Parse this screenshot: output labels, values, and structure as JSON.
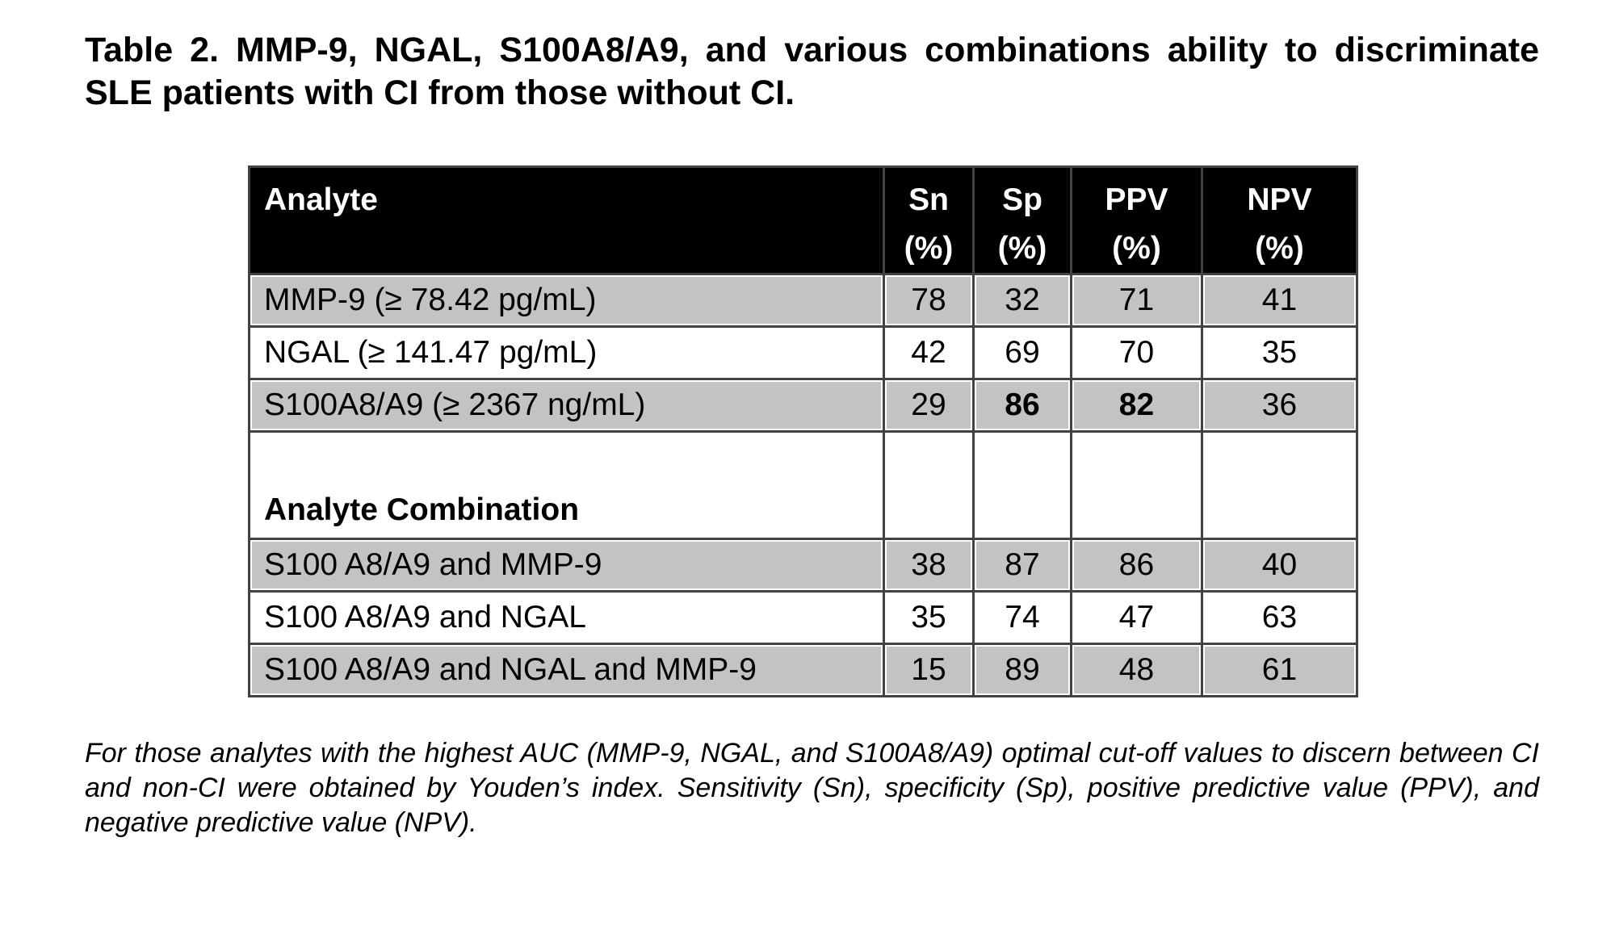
{
  "title": "Table 2. MMP-9, NGAL, S100A8/A9, and various combinations ability to discriminate SLE patients with CI from those without CI.",
  "table": {
    "columns": {
      "analyte": {
        "label": "Analyte",
        "unit": ""
      },
      "sn": {
        "label": "Sn",
        "unit": "(%)"
      },
      "sp": {
        "label": "Sp",
        "unit": "(%)"
      },
      "ppv": {
        "label": "PPV",
        "unit": "(%)"
      },
      "npv": {
        "label": "NPV",
        "unit": "(%)"
      }
    },
    "rows": [
      {
        "analyte": "MMP-9 (≥ 78.42 pg/mL)",
        "sn": "78",
        "sp": "32",
        "ppv": "71",
        "npv": "41"
      },
      {
        "analyte": "NGAL (≥ 141.47 pg/mL)",
        "sn": "42",
        "sp": "69",
        "ppv": "70",
        "npv": "35"
      },
      {
        "analyte": "S100A8/A9 (≥ 2367 ng/mL)",
        "sn": "29",
        "sp": "86",
        "ppv": "82",
        "npv": "36"
      },
      {
        "analyte": "Analyte Combination",
        "sn": "",
        "sp": "",
        "ppv": "",
        "npv": ""
      },
      {
        "analyte": "S100 A8/A9 and MMP-9",
        "sn": "38",
        "sp": "87",
        "ppv": "86",
        "npv": "40"
      },
      {
        "analyte": "S100 A8/A9 and NGAL",
        "sn": "35",
        "sp": "74",
        "ppv": "47",
        "npv": "63"
      },
      {
        "analyte": "S100 A8/A9 and NGAL and MMP-9",
        "sn": "15",
        "sp": "89",
        "ppv": "48",
        "npv": "61"
      }
    ]
  },
  "footnote": "For those analytes with the highest AUC (MMP-9, NGAL, and S100A8/A9) optimal cut-off values to discern between CI and non-CI were obtained by Youden’s index. Sensitivity (Sn), specificity (Sp), positive predictive value (PPV), and negative predictive value (NPV).",
  "colors": {
    "header_bg": "#000000",
    "header_text": "#ffffff",
    "shaded_row": "#c3c3c3",
    "border": "#424242",
    "text": "#000000",
    "background": "#ffffff"
  }
}
